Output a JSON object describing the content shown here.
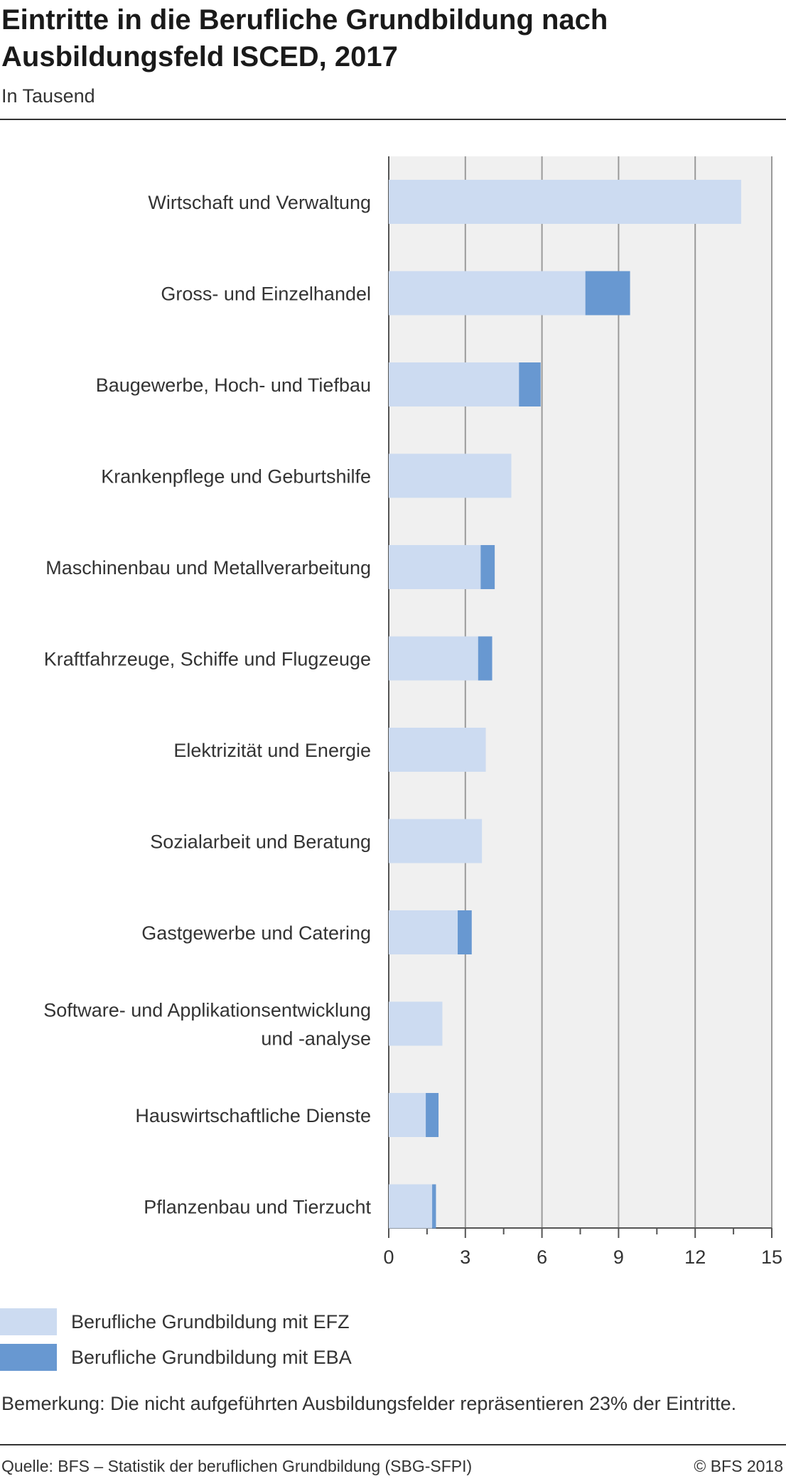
{
  "header": {
    "title": "Eintritte in die Berufliche Grundbildung nach Ausbildungsfeld ISCED, 2017",
    "subtitle": "In Tausend"
  },
  "chart_data": {
    "type": "bar",
    "orientation": "horizontal",
    "stacked": true,
    "categories": [
      "Wirtschaft und Verwaltung",
      "Gross- und Einzelhandel",
      "Baugewerbe, Hoch- und Tiefbau",
      "Krankenpflege und Geburtshilfe",
      "Maschinenbau und Metallverarbeitung",
      "Kraftfahrzeuge, Schiffe und Flugzeuge",
      "Elektrizität und Energie",
      "Sozialarbeit und Beratung",
      "Gastgewerbe und Catering",
      "Software- und Applikationsentwicklung und -analyse",
      "Hauswirtschaftliche Dienste",
      "Pflanzenbau und Tierzucht"
    ],
    "series": [
      {
        "name": "Berufliche Grundbildung mit EFZ",
        "color": "#ccdbf1",
        "values": [
          13.8,
          7.7,
          5.1,
          4.8,
          3.6,
          3.5,
          3.8,
          3.65,
          2.7,
          2.1,
          1.45,
          1.7
        ]
      },
      {
        "name": "Berufliche Grundbildung mit EBA",
        "color": "#6898d1",
        "values": [
          0,
          1.75,
          0.85,
          0,
          0.55,
          0.55,
          0,
          0,
          0.55,
          0,
          0.5,
          0.15
        ]
      }
    ],
    "xlim": [
      0,
      15
    ],
    "xticks": [
      0,
      3,
      6,
      9,
      12,
      15
    ],
    "grid": true,
    "legend_position": "bottom-left"
  },
  "note": "Bemerkung: Die nicht aufgeführten Ausbildungsfelder repräsentieren 23% der Eintritte.",
  "footer": {
    "source": "Quelle: BFS – Statistik der beruflichen Grundbildung (SBG-SFPI)",
    "copyright": "© BFS 2018"
  }
}
